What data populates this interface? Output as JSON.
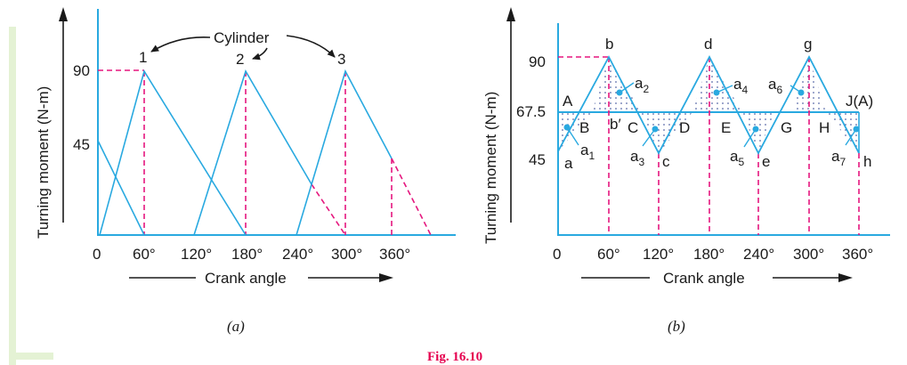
{
  "colors": {
    "curve": "#29a9e0",
    "dashed": "#e5177e",
    "axis": "#1a1a1a",
    "sidebar": "#e4f2d4",
    "caption": "#e5004f",
    "dots": "#2a3f8f"
  },
  "caption": "Fig. 16.10",
  "diagram_a": {
    "sublabel": "(a)",
    "y_axis_title": "Turning moment (N-m)",
    "x_axis_title": "Crank angle",
    "y_ticks": [
      "90",
      "45"
    ],
    "x_ticks": [
      "0",
      "60°",
      "120°",
      "180°",
      "240°",
      "300°",
      "360°"
    ],
    "cylinder_label": "Cylinder",
    "cylinder_numbers": [
      "1",
      "2",
      "3"
    ]
  },
  "diagram_b": {
    "sublabel": "(b)",
    "y_axis_title": "Turning moment (N-m)",
    "x_axis_title": "Crank angle",
    "y_ticks": [
      "90",
      "67.5",
      "45"
    ],
    "x_ticks": [
      "0",
      "60°",
      "120°",
      "180°",
      "240°",
      "300°",
      "360°"
    ],
    "peak_labels": [
      "b",
      "d",
      "g"
    ],
    "valley_labels": [
      "a",
      "c",
      "e",
      "h"
    ],
    "crossing_labels": [
      "A",
      "B",
      "C",
      "D",
      "E",
      "G",
      "H",
      "J(A)"
    ],
    "b_prime_label": "b′",
    "area_labels": [
      {
        "base": "a",
        "sub": "1"
      },
      {
        "base": "a",
        "sub": "2"
      },
      {
        "base": "a",
        "sub": "3"
      },
      {
        "base": "a",
        "sub": "4"
      },
      {
        "base": "a",
        "sub": "5"
      },
      {
        "base": "a",
        "sub": "6"
      },
      {
        "base": "a",
        "sub": "7"
      }
    ]
  }
}
